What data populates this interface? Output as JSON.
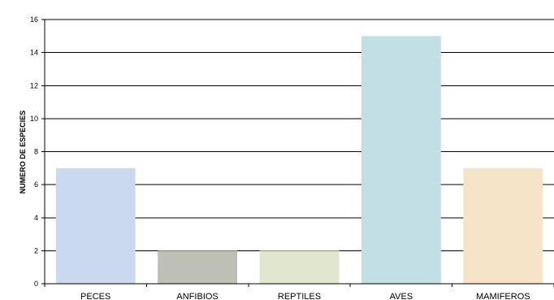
{
  "chart_data": {
    "type": "bar",
    "title": "",
    "xlabel": "",
    "ylabel": "NUMERO DE ESPECIES",
    "categories": [
      "PECES",
      "ANFIBIOS",
      "REPTILES",
      "AVES",
      "MAMIFEROS"
    ],
    "values": [
      7,
      2,
      2,
      15,
      7
    ],
    "bar_colors": [
      "#cad9ef",
      "#bfc0b5",
      "#e1e7cf",
      "#c1dfe4",
      "#f6e4c8"
    ],
    "ylim": [
      0,
      16
    ],
    "yticks": [
      0,
      2,
      4,
      6,
      8,
      10,
      12,
      14,
      16
    ],
    "grid": true,
    "legend": "none"
  }
}
